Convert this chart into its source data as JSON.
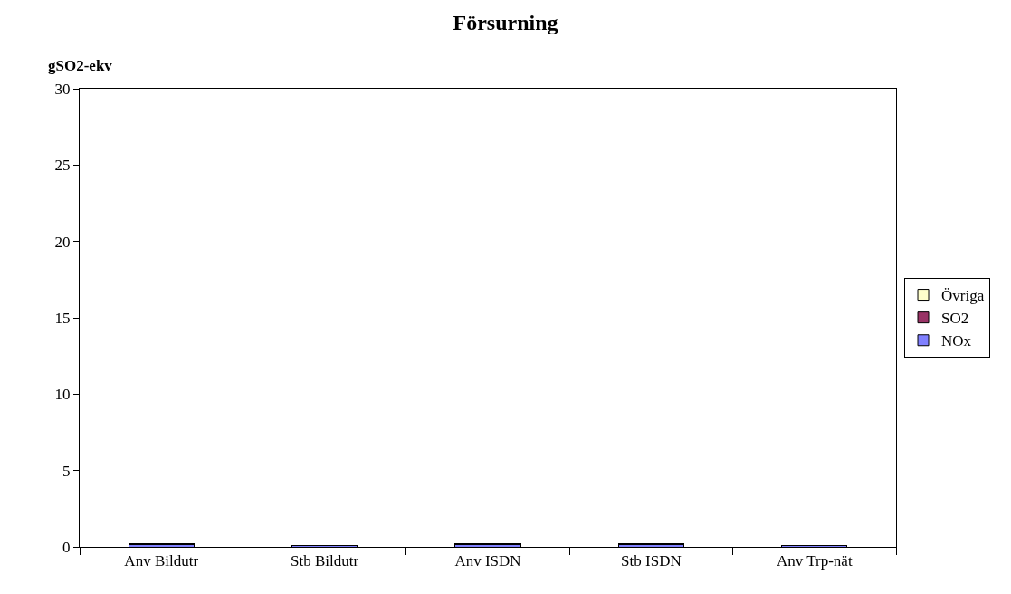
{
  "chart_data": {
    "type": "bar",
    "title": "Försurning",
    "ylabel": "gSO2-ekv",
    "categories": [
      "Anv Bildutr",
      "Stb Bildutr",
      "Anv ISDN",
      "Stb ISDN",
      "Anv Trp-nät"
    ],
    "stacked": true,
    "series": [
      {
        "name": "NOx",
        "color": "#8080ff",
        "values": [
          0.15,
          0.08,
          0.15,
          0.15,
          0.08
        ]
      },
      {
        "name": "SO2",
        "color": "#993366",
        "values": [
          0.05,
          0.02,
          0.05,
          0.05,
          0.02
        ]
      },
      {
        "name": "Övriga",
        "color": "#ffffcc",
        "values": [
          0.01,
          0.01,
          0.01,
          0.01,
          0.01
        ]
      }
    ],
    "ylim": [
      0,
      30
    ],
    "yticks": [
      0,
      5,
      10,
      15,
      20,
      25,
      30
    ],
    "legend": "right"
  }
}
